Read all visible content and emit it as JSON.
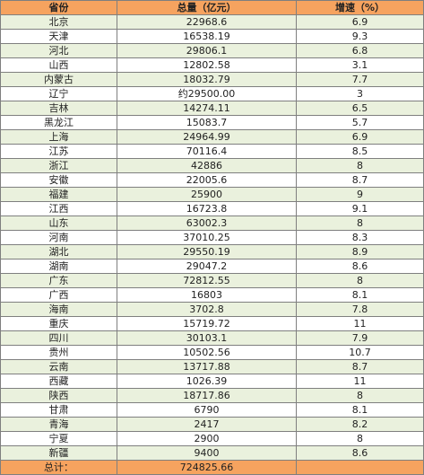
{
  "table": {
    "headers": [
      "省份",
      "总量（亿元）",
      "增速（%）"
    ],
    "rows": [
      [
        "北京",
        "22968.6",
        "6.9"
      ],
      [
        "天津",
        "16538.19",
        "9.3"
      ],
      [
        "河北",
        "29806.1",
        "6.8"
      ],
      [
        "山西",
        "12802.58",
        "3.1"
      ],
      [
        "内蒙古",
        "18032.79",
        "7.7"
      ],
      [
        "辽宁",
        "约29500.00",
        "3"
      ],
      [
        "吉林",
        "14274.11",
        "6.5"
      ],
      [
        "黑龙江",
        "15083.7",
        "5.7"
      ],
      [
        "上海",
        "24964.99",
        "6.9"
      ],
      [
        "江苏",
        "70116.4",
        "8.5"
      ],
      [
        "浙江",
        "42886",
        "8"
      ],
      [
        "安徽",
        "22005.6",
        "8.7"
      ],
      [
        "福建",
        "25900",
        "9"
      ],
      [
        "江西",
        "16723.8",
        "9.1"
      ],
      [
        "山东",
        "63002.3",
        "8"
      ],
      [
        "河南",
        "37010.25",
        "8.3"
      ],
      [
        "湖北",
        "29550.19",
        "8.9"
      ],
      [
        "湖南",
        "29047.2",
        "8.6"
      ],
      [
        "广东",
        "72812.55",
        "8"
      ],
      [
        "广西",
        "16803",
        "8.1"
      ],
      [
        "海南",
        "3702.8",
        "7.8"
      ],
      [
        "重庆",
        "15719.72",
        "11"
      ],
      [
        "四川",
        "30103.1",
        "7.9"
      ],
      [
        "贵州",
        "10502.56",
        "10.7"
      ],
      [
        "云南",
        "13717.88",
        "8.7"
      ],
      [
        "西藏",
        "1026.39",
        "11"
      ],
      [
        "陕西",
        "18717.86",
        "8"
      ],
      [
        "甘肃",
        "6790",
        "8.1"
      ],
      [
        "青海",
        "2417",
        "8.2"
      ],
      [
        "宁夏",
        "2900",
        "8"
      ],
      [
        "新疆",
        "9400",
        "8.6"
      ]
    ],
    "footer": [
      "总计：",
      "724825.66",
      ""
    ]
  },
  "colors": {
    "header_bg": "#f6a35f",
    "odd_row_bg": "#eaf1dd",
    "even_row_bg": "#ffffff",
    "border": "#7f7f7f"
  }
}
